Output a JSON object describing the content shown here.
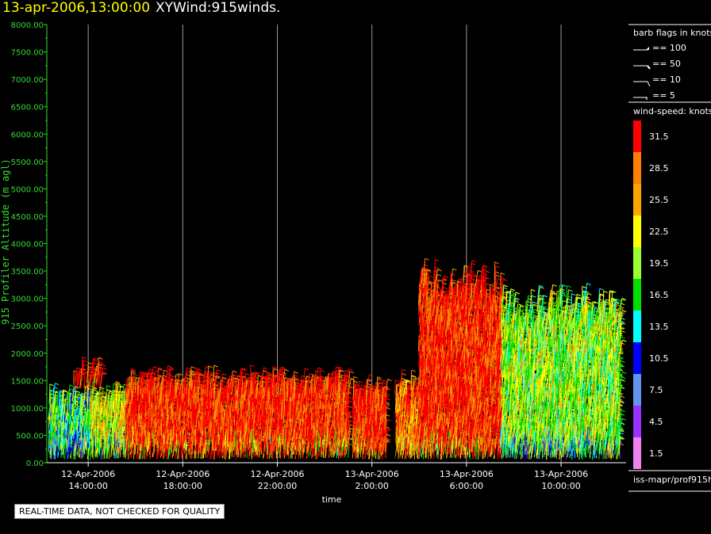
{
  "header": {
    "datetime": "13-apr-2006,13:00:00",
    "product": "XYWind:915winds."
  },
  "legend": {
    "barb_title": "barb flags in knots",
    "barbs": [
      "== 100",
      "== 50",
      "== 10",
      "== 5"
    ],
    "speed_title": "wind-speed: knots",
    "speed_bins": [
      {
        "label": "31.5",
        "color": "#ff0000"
      },
      {
        "label": "28.5",
        "color": "#ff7f00"
      },
      {
        "label": "25.5",
        "color": "#ffa500"
      },
      {
        "label": "22.5",
        "color": "#ffff00"
      },
      {
        "label": "19.5",
        "color": "#9aff32"
      },
      {
        "label": "16.5",
        "color": "#00e000"
      },
      {
        "label": "13.5",
        "color": "#00ffff"
      },
      {
        "label": "10.5",
        "color": "#0000ff"
      },
      {
        "label": "7.5",
        "color": "#6495ed"
      },
      {
        "label": "4.5",
        "color": "#9b30ff"
      },
      {
        "label": "1.5",
        "color": "#ee82ee"
      }
    ],
    "source": "iss-mapr/prof915h"
  },
  "footer": {
    "quality_note": "REAL-TIME DATA, NOT CHECKED FOR QUALITY"
  },
  "chart_data": {
    "type": "scatter",
    "ylabel": "915 Profiler Altitude (m agl)",
    "xlabel": "time",
    "ylim": [
      0,
      8000
    ],
    "yticks": [
      "0.00",
      "500.00",
      "1000.00",
      "1500.00",
      "2000.00",
      "2500.00",
      "3000.00",
      "3500.00",
      "4000.00",
      "4500.00",
      "5000.00",
      "5500.00",
      "6000.00",
      "6500.00",
      "7000.00",
      "7500.00",
      "8000.00"
    ],
    "xlim_hours": [
      12.25,
      36.75
    ],
    "xticks": [
      {
        "date": "12-Apr-2006",
        "time": "14:00:00"
      },
      {
        "date": "12-Apr-2006",
        "time": "18:00:00"
      },
      {
        "date": "12-Apr-2006",
        "time": "22:00:00"
      },
      {
        "date": "13-Apr-2006",
        "time": "2:00:00"
      },
      {
        "date": "13-Apr-2006",
        "time": "6:00:00"
      },
      {
        "date": "13-Apr-2006",
        "time": "10:00:00"
      }
    ],
    "xtick_hours": [
      14,
      18,
      22,
      26,
      30,
      34
    ],
    "grid_vertical": true,
    "data_gaps_hours": [
      [
        25.0,
        25.2
      ],
      [
        26.6,
        27.0
      ]
    ],
    "segments": [
      {
        "start_hour": 12.35,
        "end_hour": 14.1,
        "top_m": 1200,
        "dominant_speed_kt": 16.5
      },
      {
        "start_hour": 13.4,
        "end_hour": 14.6,
        "top_m": 1650,
        "dominant_speed_kt": 31.5,
        "min_m": 1350
      },
      {
        "start_hour": 14.1,
        "end_hour": 15.6,
        "top_m": 1200,
        "dominant_speed_kt": 22.5
      },
      {
        "start_hour": 15.6,
        "end_hour": 25.0,
        "top_m": 1500,
        "dominant_speed_kt": 31.5
      },
      {
        "start_hour": 25.2,
        "end_hour": 26.6,
        "top_m": 1350,
        "dominant_speed_kt": 31.5
      },
      {
        "start_hour": 27.0,
        "end_hour": 28.0,
        "top_m": 1400,
        "dominant_speed_kt": 28.5
      },
      {
        "start_hour": 28.0,
        "end_hour": 31.5,
        "top_m": 3450,
        "dominant_speed_kt": 31.5
      },
      {
        "start_hour": 31.5,
        "end_hour": 36.5,
        "top_m": 3000,
        "dominant_speed_kt": 19.5
      }
    ]
  }
}
